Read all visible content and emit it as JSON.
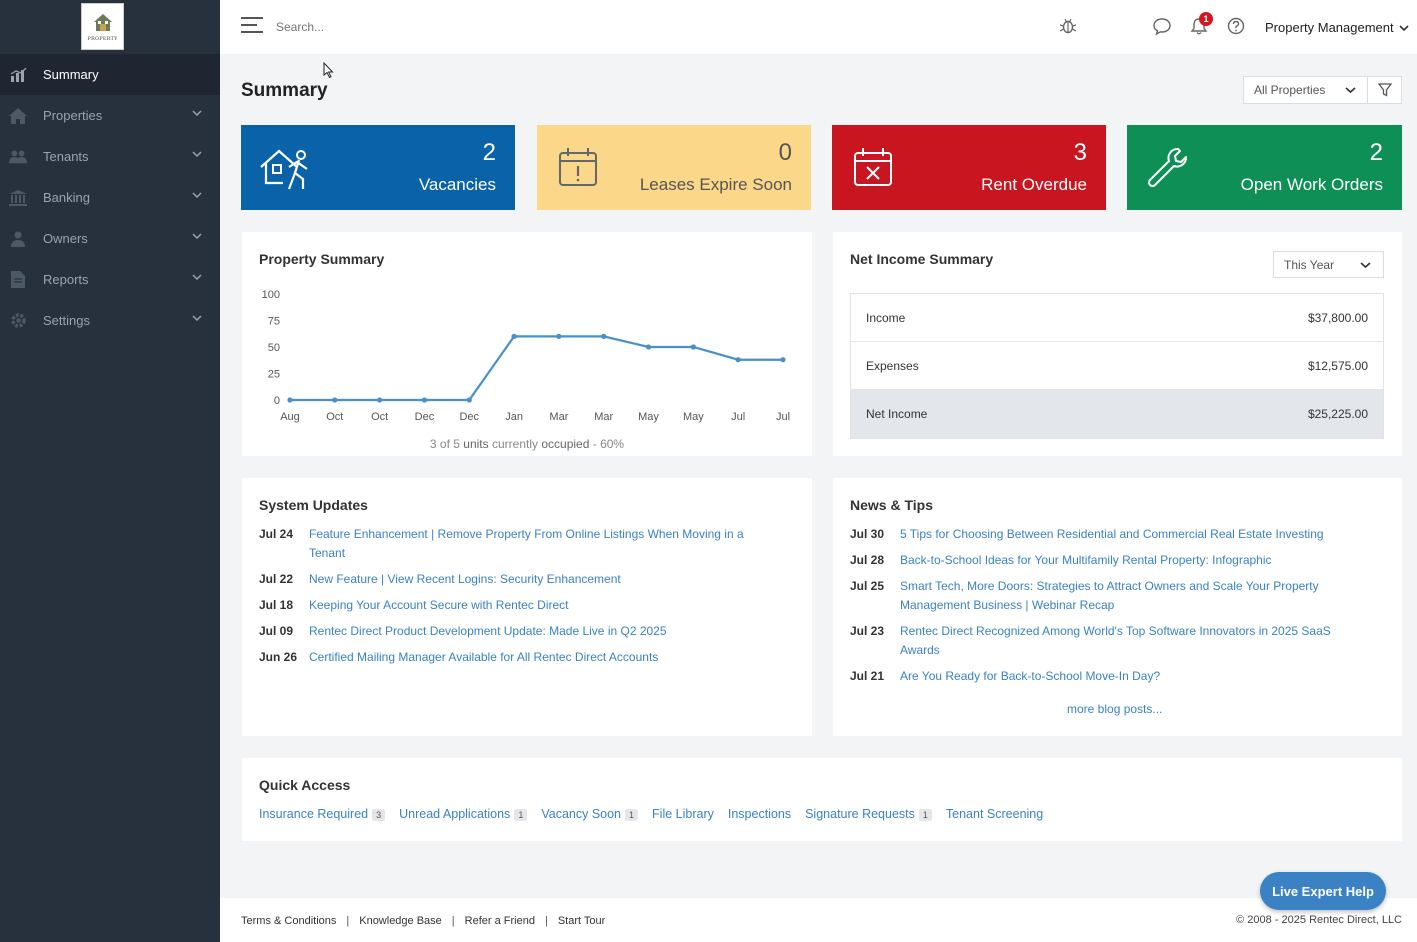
{
  "brand": {
    "logo_text": "PROPERTY"
  },
  "sidebar": {
    "items": [
      {
        "label": "Summary",
        "icon": "chart-icon",
        "active": true
      },
      {
        "label": "Properties",
        "icon": "home-icon"
      },
      {
        "label": "Tenants",
        "icon": "users-icon"
      },
      {
        "label": "Banking",
        "icon": "bank-icon"
      },
      {
        "label": "Owners",
        "icon": "user-icon"
      },
      {
        "label": "Reports",
        "icon": "document-icon"
      },
      {
        "label": "Settings",
        "icon": "gear-icon"
      }
    ]
  },
  "topbar": {
    "search_placeholder": "Search...",
    "notification_count": "1",
    "account_label": "Property Management"
  },
  "page": {
    "title": "Summary",
    "property_filter": "All Properties"
  },
  "tiles": [
    {
      "count": "2",
      "label": "Vacancies",
      "color": "#0a62a9",
      "icon": "vacancy-icon"
    },
    {
      "count": "0",
      "label": "Leases Expire Soon",
      "color": "#fbd78a",
      "icon": "calendar-alert-icon"
    },
    {
      "count": "3",
      "label": "Rent Overdue",
      "color": "#c8151f",
      "icon": "calendar-x-icon"
    },
    {
      "count": "2",
      "label": "Open Work Orders",
      "color": "#0e8f55",
      "icon": "wrench-icon"
    }
  ],
  "property_summary": {
    "title": "Property Summary",
    "occupancy_text_prefix": "3 of 5",
    "occupancy_units": "units",
    "occupancy_mid": "currently",
    "occupancy_word": "occupied",
    "occupancy_suffix": "- 60%"
  },
  "chart_data": {
    "type": "line",
    "categories": [
      "Aug",
      "Oct",
      "Oct",
      "Dec",
      "Dec",
      "Jan",
      "Mar",
      "Mar",
      "May",
      "May",
      "Jul",
      "Jul"
    ],
    "values": [
      0,
      0,
      0,
      0,
      0,
      60,
      60,
      60,
      50,
      50,
      38,
      38
    ],
    "ylim": [
      0,
      100
    ],
    "yticks": [
      0,
      25,
      50,
      75,
      100
    ],
    "color": "#4a90c8"
  },
  "net_income": {
    "title": "Net Income Summary",
    "period": "This Year",
    "rows": [
      {
        "label": "Income",
        "value": "$37,800.00"
      },
      {
        "label": "Expenses",
        "value": "$12,575.00"
      },
      {
        "label": "Net Income",
        "value": "$25,225.00"
      }
    ]
  },
  "system_updates": {
    "title": "System Updates",
    "items": [
      {
        "date": "Jul 24",
        "text": "Feature Enhancement | Remove Property From Online Listings When Moving in a Tenant"
      },
      {
        "date": "Jul 22",
        "text": "New Feature | View Recent Logins: Security Enhancement"
      },
      {
        "date": "Jul 18",
        "text": "Keeping Your Account Secure with Rentec Direct"
      },
      {
        "date": "Jul 09",
        "text": "Rentec Direct Product Development Update: Made Live in Q2 2025"
      },
      {
        "date": "Jun 26",
        "text": "Certified Mailing Manager Available for All Rentec Direct Accounts"
      }
    ]
  },
  "news": {
    "title": "News & Tips",
    "items": [
      {
        "date": "Jul 30",
        "text": "5 Tips for Choosing Between Residential and Commercial Real Estate Investing"
      },
      {
        "date": "Jul 28",
        "text": "Back-to-School Ideas for Your Multifamily Rental Property: Infographic"
      },
      {
        "date": "Jul 25",
        "text": "Smart Tech, More Doors: Strategies to Attract Owners and Scale Your Property Management Business | Webinar Recap"
      },
      {
        "date": "Jul 23",
        "text": "Rentec Direct Recognized Among World's Top Software Innovators in 2025 SaaS Awards"
      },
      {
        "date": "Jul 21",
        "text": "Are You Ready for Back-to-School Move-In Day?"
      }
    ],
    "more_label": "more blog posts..."
  },
  "quick_access": {
    "title": "Quick Access",
    "links": [
      {
        "label": "Insurance Required",
        "count": "3"
      },
      {
        "label": "Unread Applications",
        "count": "1"
      },
      {
        "label": "Vacancy Soon",
        "count": "1"
      },
      {
        "label": "File Library",
        "count": ""
      },
      {
        "label": "Inspections",
        "count": ""
      },
      {
        "label": "Signature Requests",
        "count": "1"
      },
      {
        "label": "Tenant Screening",
        "count": ""
      }
    ]
  },
  "footer": {
    "links": [
      "Terms & Conditions",
      "Knowledge Base",
      "Refer a Friend",
      "Start Tour"
    ],
    "copyright": "© 2008 - 2025 Rentec Direct, LLC"
  },
  "live_help_label": "Live Expert Help"
}
